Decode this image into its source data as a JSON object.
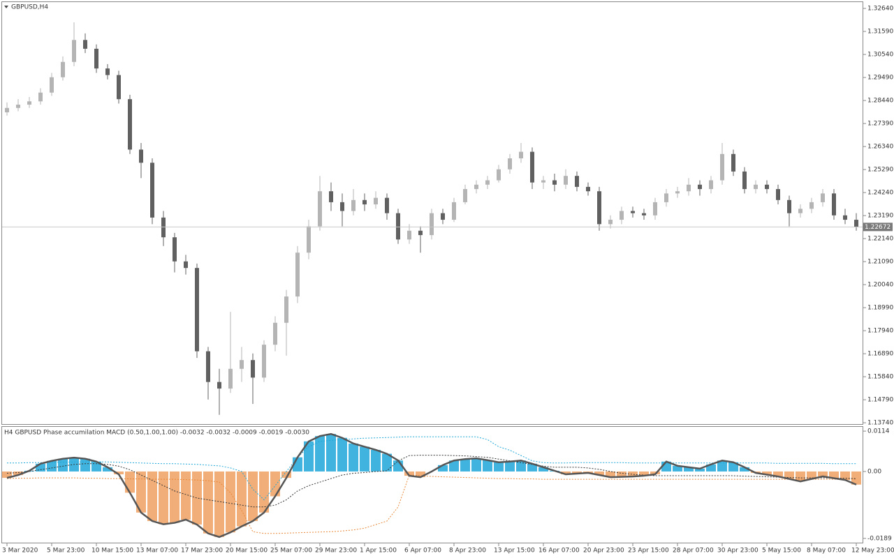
{
  "chart_data": [
    {
      "type": "candlestick",
      "title": "GBPUSD,H4",
      "up_color": "#b4b4b4",
      "down_color": "#606060",
      "ylim": [
        1.1368,
        1.3296
      ],
      "yticks": [
        {
          "value": 1.3264,
          "label": "1.32640"
        },
        {
          "value": 1.3159,
          "label": "1.31590"
        },
        {
          "value": 1.3054,
          "label": "1.30540"
        },
        {
          "value": 1.2949,
          "label": "1.29490"
        },
        {
          "value": 1.2844,
          "label": "1.28440"
        },
        {
          "value": 1.2739,
          "label": "1.27390"
        },
        {
          "value": 1.2634,
          "label": "1.26340"
        },
        {
          "value": 1.2529,
          "label": "1.25290"
        },
        {
          "value": 1.2424,
          "label": "1.24240"
        },
        {
          "value": 1.2319,
          "label": "1.23190"
        },
        {
          "value": 1.2214,
          "label": "1.22140"
        },
        {
          "value": 1.2109,
          "label": "1.21090"
        },
        {
          "value": 1.2004,
          "label": "1.20040"
        },
        {
          "value": 1.1899,
          "label": "1.18990"
        },
        {
          "value": 1.1794,
          "label": "1.17940"
        },
        {
          "value": 1.1689,
          "label": "1.16890"
        },
        {
          "value": 1.1584,
          "label": "1.15840"
        },
        {
          "value": 1.1479,
          "label": "1.14790"
        },
        {
          "value": 1.1374,
          "label": "1.13740"
        }
      ],
      "current_price": 1.22672,
      "categories": [
        "3 Mar 2020",
        null,
        null,
        null,
        "5 Mar 23:00",
        null,
        null,
        null,
        "10 Mar 15:00",
        null,
        null,
        null,
        "13 Mar 07:00",
        null,
        null,
        null,
        "17 Mar 23:00",
        null,
        null,
        null,
        "20 Mar 15:00",
        null,
        null,
        null,
        "25 Mar 07:00",
        null,
        null,
        null,
        "29 Mar 23:00",
        null,
        null,
        null,
        "1 Apr 15:00",
        null,
        null,
        null,
        "6 Apr 07:00",
        null,
        null,
        null,
        "8 Apr 23:00",
        null,
        null,
        null,
        "13 Apr 15:00",
        null,
        null,
        null,
        "16 Apr 07:00",
        null,
        null,
        null,
        "20 Apr 23:00",
        null,
        null,
        null,
        "23 Apr 15:00",
        null,
        null,
        null,
        "28 Apr 07:00",
        null,
        null,
        null,
        "30 Apr 23:00",
        null,
        null,
        null,
        "5 May 15:00",
        null,
        null,
        null,
        "8 May 07:00",
        null,
        null,
        null,
        "12 May 23:00"
      ],
      "values": [
        [
          1.279,
          1.2835,
          1.2775,
          1.281
        ],
        [
          1.281,
          1.285,
          1.2795,
          1.2825
        ],
        [
          1.2825,
          1.286,
          1.281,
          1.284
        ],
        [
          1.284,
          1.29,
          1.2825,
          1.288
        ],
        [
          1.288,
          1.297,
          1.2865,
          1.295
        ],
        [
          1.295,
          1.3045,
          1.2935,
          1.302
        ],
        [
          1.302,
          1.32,
          1.3,
          1.312
        ],
        [
          1.312,
          1.315,
          1.306,
          1.308
        ],
        [
          1.308,
          1.31,
          1.297,
          1.299
        ],
        [
          1.299,
          1.301,
          1.294,
          1.296
        ],
        [
          1.296,
          1.298,
          1.283,
          1.285
        ],
        [
          1.285,
          1.287,
          1.26,
          1.262
        ],
        [
          1.262,
          1.265,
          1.249,
          1.256
        ],
        [
          1.256,
          1.258,
          1.228,
          1.231
        ],
        [
          1.231,
          1.234,
          1.218,
          1.222
        ],
        [
          1.222,
          1.224,
          1.206,
          1.211
        ],
        [
          1.211,
          1.214,
          1.205,
          1.208
        ],
        [
          1.208,
          1.21,
          1.167,
          1.17
        ],
        [
          1.17,
          1.172,
          1.148,
          1.156
        ],
        [
          1.156,
          1.162,
          1.141,
          1.153
        ],
        [
          1.153,
          1.188,
          1.151,
          1.162
        ],
        [
          1.162,
          1.172,
          1.156,
          1.166
        ],
        [
          1.166,
          1.169,
          1.146,
          1.158
        ],
        [
          1.158,
          1.175,
          1.156,
          1.173
        ],
        [
          1.173,
          1.186,
          1.17,
          1.183
        ],
        [
          1.183,
          1.198,
          1.168,
          1.195
        ],
        [
          1.195,
          1.218,
          1.192,
          1.215
        ],
        [
          1.215,
          1.23,
          1.212,
          1.227
        ],
        [
          1.227,
          1.25,
          1.225,
          1.243
        ],
        [
          1.243,
          1.247,
          1.234,
          1.238
        ],
        [
          1.238,
          1.242,
          1.227,
          1.234
        ],
        [
          1.234,
          1.244,
          1.232,
          1.239
        ],
        [
          1.239,
          1.242,
          1.234,
          1.237
        ],
        [
          1.237,
          1.243,
          1.235,
          1.24
        ],
        [
          1.24,
          1.242,
          1.23,
          1.233
        ],
        [
          1.233,
          1.235,
          1.219,
          1.221
        ],
        [
          1.221,
          1.228,
          1.219,
          1.225
        ],
        [
          1.225,
          1.227,
          1.215,
          1.223
        ],
        [
          1.223,
          1.235,
          1.221,
          1.233
        ],
        [
          1.233,
          1.235,
          1.228,
          1.23
        ],
        [
          1.23,
          1.24,
          1.229,
          1.238
        ],
        [
          1.238,
          1.246,
          1.237,
          1.244
        ],
        [
          1.244,
          1.248,
          1.242,
          1.246
        ],
        [
          1.246,
          1.25,
          1.244,
          1.248
        ],
        [
          1.248,
          1.255,
          1.247,
          1.253
        ],
        [
          1.253,
          1.26,
          1.251,
          1.258
        ],
        [
          1.258,
          1.265,
          1.256,
          1.261
        ],
        [
          1.261,
          1.263,
          1.244,
          1.247
        ],
        [
          1.247,
          1.25,
          1.244,
          1.248
        ],
        [
          1.248,
          1.251,
          1.243,
          1.246
        ],
        [
          1.246,
          1.253,
          1.244,
          1.25
        ],
        [
          1.25,
          1.252,
          1.243,
          1.245
        ],
        [
          1.245,
          1.247,
          1.241,
          1.243
        ],
        [
          1.243,
          1.245,
          1.225,
          1.228
        ],
        [
          1.228,
          1.232,
          1.226,
          1.23
        ],
        [
          1.23,
          1.236,
          1.228,
          1.234
        ],
        [
          1.234,
          1.236,
          1.231,
          1.233
        ],
        [
          1.233,
          1.235,
          1.23,
          1.232
        ],
        [
          1.232,
          1.24,
          1.23,
          1.238
        ],
        [
          1.238,
          1.244,
          1.236,
          1.242
        ],
        [
          1.242,
          1.245,
          1.24,
          1.243
        ],
        [
          1.243,
          1.249,
          1.241,
          1.246
        ],
        [
          1.246,
          1.248,
          1.241,
          1.244
        ],
        [
          1.244,
          1.25,
          1.242,
          1.248
        ],
        [
          1.248,
          1.265,
          1.246,
          1.26
        ],
        [
          1.26,
          1.262,
          1.25,
          1.252
        ],
        [
          1.252,
          1.254,
          1.242,
          1.244
        ],
        [
          1.244,
          1.248,
          1.242,
          1.246
        ],
        [
          1.246,
          1.248,
          1.242,
          1.244
        ],
        [
          1.244,
          1.246,
          1.237,
          1.239
        ],
        [
          1.239,
          1.241,
          1.227,
          1.233
        ],
        [
          1.233,
          1.237,
          1.231,
          1.235
        ],
        [
          1.235,
          1.24,
          1.233,
          1.238
        ],
        [
          1.238,
          1.244,
          1.236,
          1.242
        ],
        [
          1.242,
          1.244,
          1.23,
          1.232
        ],
        [
          1.232,
          1.235,
          1.228,
          1.23
        ],
        [
          1.23,
          1.233,
          1.225,
          1.2267
        ]
      ]
    },
    {
      "type": "macd",
      "title": "H4 GBPUSD Phase accumilation MACD (0.50,1.00,1.00) -0.0032 -0.0032 -0.0009 -0.0019 -0.0030",
      "pos_color": "#1ea7d9",
      "neg_color": "#f0a060",
      "line_color": "#555555",
      "ylim": [
        -0.0201,
        0.0126
      ],
      "yticks": [
        0.0114,
        {
          "value": 0,
          "label": "0.00"
        },
        -0.0189
      ],
      "values": [
        -0.0018,
        -0.001,
        0.0002,
        0.0022,
        0.003,
        0.0036,
        0.0039,
        0.0036,
        0.0028,
        0.0012,
        -0.0008,
        -0.006,
        -0.0116,
        -0.014,
        -0.0149,
        -0.0145,
        -0.0136,
        -0.015,
        -0.0175,
        -0.0185,
        -0.0172,
        -0.0155,
        -0.014,
        -0.0116,
        -0.007,
        -0.0018,
        0.004,
        0.0085,
        0.01,
        0.0106,
        0.0095,
        0.0079,
        0.007,
        0.0061,
        0.005,
        0.0031,
        -0.0012,
        -0.0016,
        0.0,
        0.0018,
        0.0031,
        0.0035,
        0.0037,
        0.0032,
        0.0026,
        0.0028,
        0.0031,
        0.0022,
        0.0012,
        0.0002,
        -0.0008,
        -0.0006,
        -0.0004,
        -0.001,
        -0.0016,
        -0.0015,
        -0.0014,
        -0.0012,
        -0.0008,
        0.0028,
        0.0016,
        0.0012,
        0.0008,
        0.002,
        0.0031,
        0.0026,
        0.0012,
        -0.0004,
        -0.0009,
        -0.0014,
        -0.0021,
        -0.0028,
        -0.0021,
        -0.0014,
        -0.0019,
        -0.0024,
        -0.0037
      ],
      "series": [
        {
          "color": "#1ea7d9",
          "values": [
            0.0024,
            0.0024,
            0.0025,
            0.0025,
            0.0026,
            0.0026,
            0.0027,
            0.0027,
            0.0027,
            0.0027,
            0.0026,
            0.0025,
            0.0024,
            0.0023,
            0.0022,
            0.0022,
            0.0021,
            0.002,
            0.0018,
            0.0016,
            0.001,
            0.0,
            -0.005,
            -0.008,
            -0.004,
            0.0,
            0.004,
            0.007,
            0.0085,
            0.0088,
            0.009,
            0.0092,
            0.0094,
            0.0095,
            0.0096,
            0.0097,
            0.0098,
            0.0098,
            0.0098,
            0.0098,
            0.0098,
            0.0098,
            0.0098,
            0.009,
            0.007,
            0.006,
            0.0045,
            0.003,
            0.0025,
            0.0024,
            0.0024,
            0.0025,
            0.0025,
            0.0025,
            0.0025,
            0.0025,
            0.0024,
            0.0024,
            0.0024,
            0.0024,
            0.0024,
            0.0024,
            0.0024,
            0.0024,
            0.0024,
            0.0024,
            0.0024,
            0.0024,
            0.0024,
            0.0023,
            0.0023,
            0.0023,
            0.0023,
            0.0023,
            0.0022,
            0.0022,
            0.0022
          ]
        },
        {
          "color": "#e8883a",
          "values": [
            -0.002,
            -0.0019,
            -0.0019,
            -0.0018,
            -0.0018,
            -0.0018,
            -0.0018,
            -0.0019,
            -0.0019,
            -0.002,
            -0.002,
            -0.0021,
            -0.0021,
            -0.0022,
            -0.0022,
            -0.0022,
            -0.0023,
            -0.0024,
            -0.0026,
            -0.003,
            -0.006,
            -0.011,
            -0.017,
            -0.0175,
            -0.0175,
            -0.0174,
            -0.0173,
            -0.0172,
            -0.0171,
            -0.017,
            -0.0168,
            -0.0165,
            -0.016,
            -0.015,
            -0.014,
            -0.01,
            -0.001,
            -0.0012,
            -0.0014,
            -0.0015,
            -0.0016,
            -0.0017,
            -0.0018,
            -0.0019,
            -0.002,
            -0.002,
            -0.0021,
            -0.0021,
            -0.0022,
            -0.0022,
            -0.0022,
            -0.0022,
            -0.0022,
            -0.0022,
            -0.0022,
            -0.0022,
            -0.0022,
            -0.0022,
            -0.0022,
            -0.0022,
            -0.0022,
            -0.0022,
            -0.0022,
            -0.0022,
            -0.0022,
            -0.0022,
            -0.0022,
            -0.0022,
            -0.0022,
            -0.0022,
            -0.0022,
            -0.0022,
            -0.0022,
            -0.0022,
            -0.0022,
            -0.0022,
            -0.0022
          ]
        },
        {
          "color": "#333333",
          "values": [
            -0.0005,
            -0.0003,
            0.0,
            0.0005,
            0.001,
            0.0015,
            0.002,
            0.0022,
            0.0022,
            0.002,
            0.0015,
            0.0005,
            -0.001,
            -0.0025,
            -0.004,
            -0.0055,
            -0.0065,
            -0.0075,
            -0.008,
            -0.0085,
            -0.009,
            -0.0095,
            -0.01,
            -0.01,
            -0.0095,
            -0.008,
            -0.0055,
            -0.004,
            -0.003,
            -0.002,
            -0.001,
            -0.0005,
            -0.0003,
            0.0,
            0.0002,
            0.003,
            0.0045,
            0.0046,
            0.0046,
            0.0046,
            0.0045,
            0.0044,
            0.0042,
            0.004,
            0.0035,
            0.003,
            0.0025,
            0.002,
            0.0015,
            0.0012,
            0.0012,
            0.0012,
            0.001,
            0.0006,
            0.0,
            -0.0005,
            -0.0008,
            -0.001,
            -0.0012,
            -0.0012,
            -0.0012,
            -0.0012,
            -0.0012,
            -0.0012,
            -0.0012,
            -0.0012,
            -0.0013,
            -0.0014,
            -0.0015,
            -0.0016,
            -0.0017,
            -0.0018,
            -0.0018,
            -0.0018,
            -0.0019,
            -0.0019,
            -0.002
          ]
        }
      ]
    }
  ]
}
